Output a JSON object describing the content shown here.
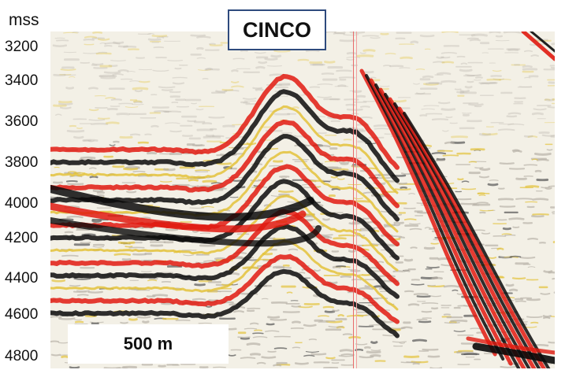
{
  "title": "CINCO",
  "scale_bar": {
    "label": "500 m"
  },
  "depth_axis": {
    "unit": "mss",
    "ticks": [
      "3200",
      "3400",
      "3600",
      "3800",
      "4000",
      "4200",
      "4400",
      "4600",
      "4800"
    ]
  },
  "colors": {
    "positive_amplitude": "#e01a10",
    "negative_amplitude": "#0a0a0a",
    "low_amplitude": "#e3c23a",
    "title_border": "#2e4a7d",
    "well_line": "#e86a6a"
  }
}
